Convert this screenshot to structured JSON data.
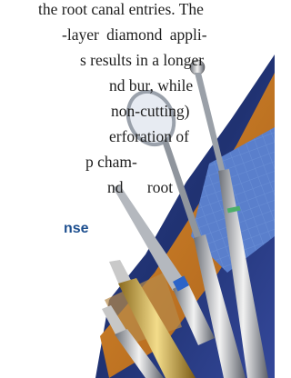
{
  "text_lines": [
    "the root canal entries. The",
    "-layer diamond appli-",
    "s results in a longer",
    "nd bur, while",
    "non-cutting)",
    "erforation of",
    "p cham-",
    "nd root"
  ],
  "heading": "nse"
}
